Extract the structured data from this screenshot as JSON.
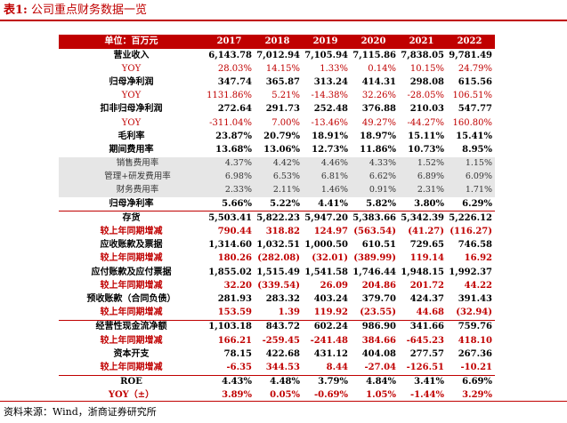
{
  "title": {
    "label": "表1:",
    "text": "公司重点财务数据一览"
  },
  "header": [
    "单位：百万元",
    "2017",
    "2018",
    "2019",
    "2020",
    "2021",
    "2022"
  ],
  "rows": [
    {
      "label": "营业收入",
      "values": [
        "6,143.78",
        "7,012.94",
        "7,105.94",
        "7,115.86",
        "7,838.05",
        "9,781.49"
      ],
      "style": "bold"
    },
    {
      "label": "YOY",
      "values": [
        "28.03%",
        "14.15%",
        "1.33%",
        "0.14%",
        "10.15%",
        "24.79%"
      ],
      "style": "red"
    },
    {
      "label": "归母净利润",
      "values": [
        "347.74",
        "365.87",
        "313.24",
        "414.31",
        "298.08",
        "615.56"
      ],
      "style": "bold"
    },
    {
      "label": "YOY",
      "values": [
        "1131.86%",
        "5.21%",
        "-14.38%",
        "32.26%",
        "-28.05%",
        "106.51%"
      ],
      "style": "red"
    },
    {
      "label": "扣非归母净利润",
      "values": [
        "272.64",
        "291.73",
        "252.48",
        "376.88",
        "210.03",
        "547.77"
      ],
      "style": "bold"
    },
    {
      "label": "YOY",
      "values": [
        "-311.04%",
        "7.00%",
        "-13.46%",
        "49.27%",
        "-44.27%",
        "160.80%"
      ],
      "style": "red"
    },
    {
      "label": "毛利率",
      "values": [
        "23.87%",
        "20.79%",
        "18.91%",
        "18.97%",
        "15.11%",
        "15.41%"
      ],
      "style": "bold"
    },
    {
      "label": "期间费用率",
      "values": [
        "13.68%",
        "13.06%",
        "12.73%",
        "11.86%",
        "10.73%",
        "8.95%"
      ],
      "style": "bold"
    },
    {
      "label": "销售费用率",
      "values": [
        "4.37%",
        "4.42%",
        "4.46%",
        "4.33%",
        "1.52%",
        "1.15%"
      ],
      "style": "gray"
    },
    {
      "label": "管理+研发费用率",
      "values": [
        "6.98%",
        "6.53%",
        "6.81%",
        "6.62%",
        "6.89%",
        "6.09%"
      ],
      "style": "gray"
    },
    {
      "label": "财务费用率",
      "values": [
        "2.33%",
        "2.11%",
        "1.46%",
        "0.91%",
        "2.31%",
        "1.71%"
      ],
      "style": "gray"
    },
    {
      "label": "归母净利率",
      "values": [
        "5.66%",
        "5.22%",
        "4.41%",
        "5.82%",
        "3.80%",
        "6.29%"
      ],
      "style": "bold sep"
    },
    {
      "label": "存货",
      "values": [
        "5,503.41",
        "5,822.23",
        "5,947.20",
        "5,383.66",
        "5,342.39",
        "5,226.12"
      ],
      "style": "bold"
    },
    {
      "label": "较上年同期增减",
      "values": [
        "790.44",
        "318.82",
        "124.97",
        "(563.54)",
        "(41.27)",
        "(116.27)"
      ],
      "style": "bold red"
    },
    {
      "label": "应收账款及票据",
      "values": [
        "1,314.60",
        "1,032.51",
        "1,000.50",
        "610.51",
        "729.65",
        "746.58"
      ],
      "style": "bold"
    },
    {
      "label": "较上年同期增减",
      "values": [
        "180.26",
        "(282.08)",
        "(32.01)",
        "(389.99)",
        "119.14",
        "16.92"
      ],
      "style": "bold red"
    },
    {
      "label": "应付账款及应付票据",
      "values": [
        "1,855.02",
        "1,515.49",
        "1,541.58",
        "1,746.44",
        "1,948.15",
        "1,992.37"
      ],
      "style": "bold"
    },
    {
      "label": "较上年同期增减",
      "values": [
        "32.20",
        "(339.54)",
        "26.09",
        "204.86",
        "201.72",
        "44.22"
      ],
      "style": "bold red"
    },
    {
      "label": "预收账款（合同负债）",
      "values": [
        "281.93",
        "283.32",
        "403.24",
        "379.70",
        "424.37",
        "391.43"
      ],
      "style": "bold"
    },
    {
      "label": "较上年同期增减",
      "values": [
        "153.59",
        "1.39",
        "119.92",
        "(23.55)",
        "44.68",
        "(32.94)"
      ],
      "style": "bold red sep"
    },
    {
      "label": "经营性现金流净额",
      "values": [
        "1,103.18",
        "843.72",
        "602.24",
        "986.90",
        "341.66",
        "759.76"
      ],
      "style": "bold"
    },
    {
      "label": "较上年同期增减",
      "values": [
        "166.21",
        "-259.45",
        "-241.48",
        "384.66",
        "-645.23",
        "418.10"
      ],
      "style": "bold red"
    },
    {
      "label": "资本开支",
      "values": [
        "78.15",
        "422.68",
        "431.12",
        "404.08",
        "277.57",
        "267.36"
      ],
      "style": "bold"
    },
    {
      "label": "较上年同期增减",
      "values": [
        "-6.35",
        "344.53",
        "8.44",
        "-27.04",
        "-126.51",
        "-10.21"
      ],
      "style": "bold red sep"
    },
    {
      "label": "ROE",
      "values": [
        "4.43%",
        "4.48%",
        "3.79%",
        "4.84%",
        "3.41%",
        "6.69%"
      ],
      "style": "bold"
    },
    {
      "label": "YOY（±）",
      "values": [
        "3.89%",
        "0.05%",
        "-0.69%",
        "1.05%",
        "-1.44%",
        "3.29%"
      ],
      "style": "bold red"
    }
  ],
  "source": "资料来源：Wind，浙商证券研究所"
}
